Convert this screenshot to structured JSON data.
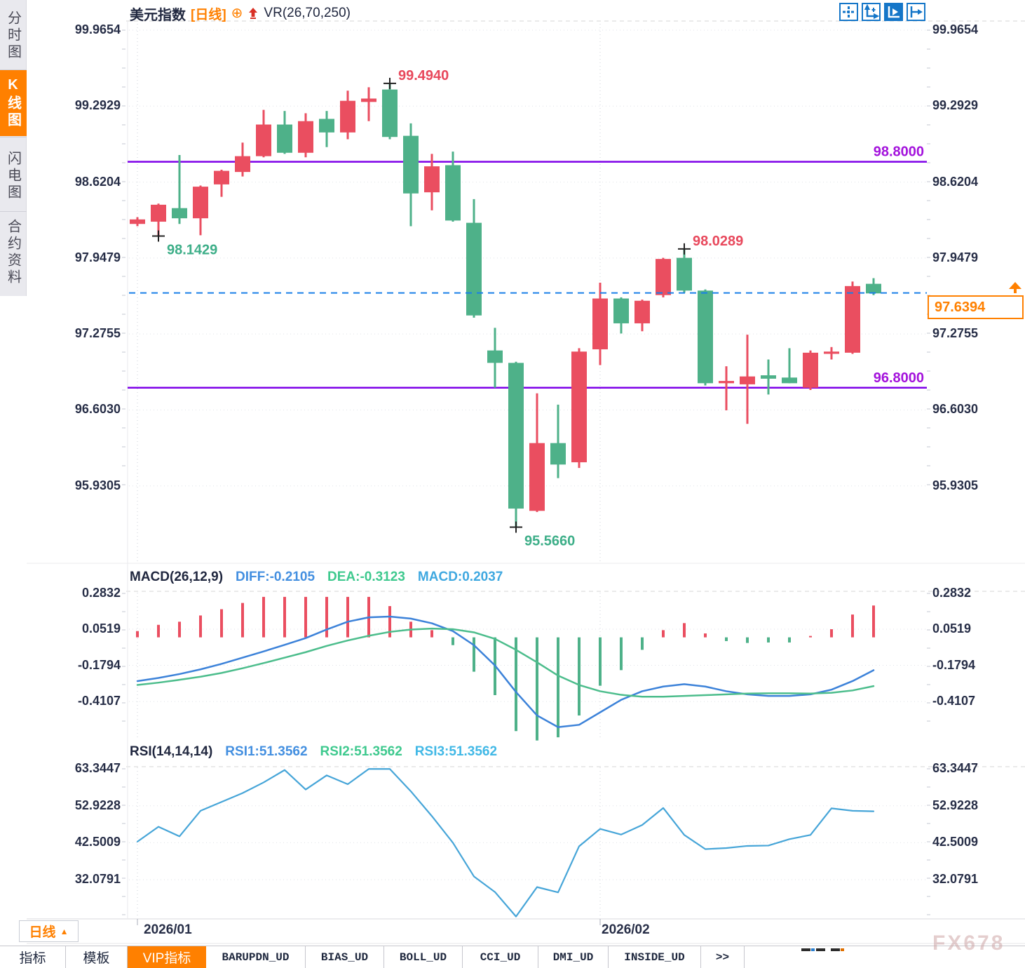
{
  "sidebar": {
    "tabs": [
      {
        "label": "分时图",
        "active": false
      },
      {
        "label": "K线图",
        "active": true
      },
      {
        "label": "闪电图",
        "active": false
      },
      {
        "label": "合约资料",
        "active": false
      }
    ]
  },
  "title": {
    "symbol": "美元指数",
    "period": "[日线]",
    "plus_icon": "⊕",
    "indicator": "VR(26,70,250)"
  },
  "toolbar": {
    "icons": [
      "move-crosshair-icon",
      "axis-scale-icon",
      "auto-fit-icon",
      "pan-right-icon"
    ]
  },
  "price_box": {
    "value": "97.6394"
  },
  "panels": {
    "macd": {
      "title": "MACD(26,12,9)",
      "diff": "DIFF:-0.2105",
      "dea": "DEA:-0.3123",
      "macd": "MACD:0.2037"
    },
    "rsi": {
      "title": "RSI(14,14,14)",
      "rsi1": "RSI1:51.3562",
      "rsi2": "RSI2:51.3562",
      "rsi3": "RSI3:51.3562"
    }
  },
  "xaxis": {
    "month1": "2026/01",
    "month2": "2026/02",
    "period_label": "日线",
    "period_tri": "▲"
  },
  "bottom_tabs": [
    {
      "label": "指标",
      "active": false,
      "mono": false
    },
    {
      "label": "模板",
      "active": false,
      "mono": false
    },
    {
      "label": "VIP指标",
      "active": true,
      "mono": false
    },
    {
      "label": "BARUPDN_UD",
      "active": false,
      "mono": true
    },
    {
      "label": "BIAS_UD",
      "active": false,
      "mono": true
    },
    {
      "label": "BOLL_UD",
      "active": false,
      "mono": true
    },
    {
      "label": "CCI_UD",
      "active": false,
      "mono": true
    },
    {
      "label": "DMI_UD",
      "active": false,
      "mono": true
    },
    {
      "label": "INSIDE_UD",
      "active": false,
      "mono": true
    },
    {
      "label": ">>",
      "active": false,
      "mono": true
    }
  ],
  "watermark": "FX678",
  "colors": {
    "up": "#ea4e60",
    "down": "#4eb189",
    "diff_line": "#3c82d9",
    "dea_line": "#4cbd8c",
    "rsi_line": "#46a5d8",
    "level_line": "#7d00e8",
    "level_label": "#a312dc",
    "current_line": "#1a7fe8",
    "accent": "#ff8000",
    "ann_high": "#e8485c",
    "ann_low": "#3dae88",
    "diff_text": "#438fe0",
    "dea_text": "#3ec98e",
    "macd_text": "#3fa8e0",
    "rsi1_text": "#438fe0",
    "rsi2_text": "#3ec98e",
    "rsi3_text": "#41b8e6"
  },
  "chart_data": {
    "type": "candlestick",
    "title": "美元指数 日线",
    "main": {
      "yticks": [
        {
          "label": "99.9654",
          "value": 99.9654
        },
        {
          "label": "99.2929",
          "value": 99.2929
        },
        {
          "label": "98.6204",
          "value": 98.6204
        },
        {
          "label": "97.9479",
          "value": 97.9479
        },
        {
          "label": "97.2755",
          "value": 97.2755
        },
        {
          "label": "96.6030",
          "value": 96.603
        },
        {
          "label": "95.9305",
          "value": 95.9305
        }
      ],
      "candles_ohlc": [
        [
          98.25,
          98.31,
          98.23,
          98.29
        ],
        [
          98.27,
          98.43,
          98.1429,
          98.42
        ],
        [
          98.39,
          98.86,
          98.25,
          98.3
        ],
        [
          98.3,
          98.59,
          98.15,
          98.58
        ],
        [
          98.6,
          98.73,
          98.49,
          98.72
        ],
        [
          98.71,
          98.97,
          98.67,
          98.85
        ],
        [
          98.85,
          99.26,
          98.84,
          99.13
        ],
        [
          99.13,
          99.25,
          98.87,
          98.88
        ],
        [
          98.88,
          99.23,
          98.84,
          99.16
        ],
        [
          99.18,
          99.25,
          98.93,
          99.06
        ],
        [
          99.06,
          99.43,
          99.0,
          99.34
        ],
        [
          99.33,
          99.46,
          99.16,
          99.36
        ],
        [
          99.44,
          99.494,
          99.0,
          99.02
        ],
        [
          99.03,
          99.14,
          98.23,
          98.52
        ],
        [
          98.53,
          98.87,
          98.37,
          98.76
        ],
        [
          98.77,
          98.89,
          98.27,
          98.28
        ],
        [
          98.26,
          98.47,
          97.42,
          97.44
        ],
        [
          97.13,
          97.33,
          96.8,
          97.02
        ],
        [
          97.02,
          97.03,
          95.566,
          95.73
        ],
        [
          95.71,
          96.75,
          95.7,
          96.31
        ],
        [
          96.31,
          96.65,
          96.0,
          96.12
        ],
        [
          96.14,
          97.15,
          96.09,
          97.12
        ],
        [
          97.14,
          97.73,
          97.0,
          97.59
        ],
        [
          97.59,
          97.6,
          97.28,
          97.37
        ],
        [
          97.37,
          97.58,
          97.3,
          97.57
        ],
        [
          97.62,
          97.95,
          97.6,
          97.94
        ],
        [
          97.95,
          98.0289,
          97.64,
          97.66
        ],
        [
          97.66,
          97.67,
          96.82,
          96.84
        ],
        [
          96.84,
          96.99,
          96.6,
          96.86
        ],
        [
          96.83,
          97.27,
          96.48,
          96.9
        ],
        [
          96.91,
          97.05,
          96.74,
          96.88
        ],
        [
          96.89,
          97.15,
          96.84,
          96.84
        ],
        [
          96.8,
          97.13,
          96.78,
          97.11
        ],
        [
          97.1,
          97.16,
          97.05,
          97.12
        ],
        [
          97.11,
          97.74,
          97.1,
          97.7
        ],
        [
          97.72,
          97.77,
          97.62,
          97.635
        ]
      ],
      "levels": [
        {
          "value": 98.8,
          "label": "98.8000"
        },
        {
          "value": 96.8,
          "label": "96.8000"
        }
      ],
      "current_price": {
        "value": 97.6394,
        "label": "97.6394"
      },
      "annotations": [
        {
          "index": 12,
          "price": 99.494,
          "type": "high",
          "label": "99.4940"
        },
        {
          "index": 1,
          "price": 98.1429,
          "type": "low",
          "label": "98.1429"
        },
        {
          "index": 26,
          "price": 98.0289,
          "type": "high",
          "label": "98.0289"
        },
        {
          "index": 18,
          "price": 95.566,
          "type": "low",
          "label": "95.5660"
        }
      ],
      "month_gridline_indices": [
        0,
        22
      ]
    },
    "macd": {
      "yticks": [
        {
          "label": "0.2832",
          "value": 0.2832
        },
        {
          "label": "0.0519",
          "value": 0.0519
        },
        {
          "label": "-0.1794",
          "value": -0.1794
        },
        {
          "label": "-0.4107",
          "value": -0.4107
        }
      ],
      "hist": [
        0.04,
        0.08,
        0.1,
        0.14,
        0.18,
        0.22,
        0.259,
        0.259,
        0.259,
        0.259,
        0.259,
        0.259,
        0.2,
        0.1,
        0.046,
        -0.05,
        -0.22,
        -0.37,
        -0.6,
        -0.66,
        -0.64,
        -0.5,
        -0.31,
        -0.21,
        -0.08,
        0.046,
        0.091,
        0.025,
        -0.024,
        -0.036,
        -0.033,
        -0.033,
        0.009,
        0.052,
        0.146,
        0.2037
      ],
      "diff": [
        -0.28,
        -0.26,
        -0.235,
        -0.205,
        -0.17,
        -0.13,
        -0.09,
        -0.048,
        -0.005,
        0.05,
        0.1,
        0.128,
        0.133,
        0.12,
        0.09,
        0.04,
        -0.05,
        -0.18,
        -0.35,
        -0.5,
        -0.575,
        -0.56,
        -0.48,
        -0.4,
        -0.345,
        -0.315,
        -0.3,
        -0.315,
        -0.345,
        -0.365,
        -0.375,
        -0.375,
        -0.365,
        -0.335,
        -0.28,
        -0.2105
      ],
      "dea": [
        -0.305,
        -0.29,
        -0.272,
        -0.252,
        -0.228,
        -0.198,
        -0.165,
        -0.13,
        -0.095,
        -0.055,
        -0.02,
        0.01,
        0.035,
        0.05,
        0.056,
        0.052,
        0.032,
        -0.01,
        -0.08,
        -0.16,
        -0.245,
        -0.305,
        -0.345,
        -0.368,
        -0.38,
        -0.38,
        -0.375,
        -0.37,
        -0.365,
        -0.36,
        -0.358,
        -0.358,
        -0.36,
        -0.355,
        -0.34,
        -0.3123
      ]
    },
    "rsi": {
      "yticks": [
        {
          "label": "63.3447",
          "value": 63.3447
        },
        {
          "label": "52.9228",
          "value": 52.9228
        },
        {
          "label": "42.5009",
          "value": 42.5009
        },
        {
          "label": "32.0791",
          "value": 32.0791
        }
      ],
      "values": [
        42.8,
        47.0,
        44.3,
        51.5,
        54.0,
        56.5,
        59.5,
        63.0,
        57.5,
        61.5,
        59.0,
        63.3,
        63.3,
        57.0,
        50.0,
        42.5,
        33.0,
        28.6,
        21.7,
        30.0,
        28.5,
        41.5,
        46.4,
        44.8,
        47.5,
        52.3,
        44.7,
        40.7,
        41.0,
        41.6,
        41.7,
        43.5,
        44.7,
        52.2,
        51.5,
        51.3562
      ]
    }
  }
}
